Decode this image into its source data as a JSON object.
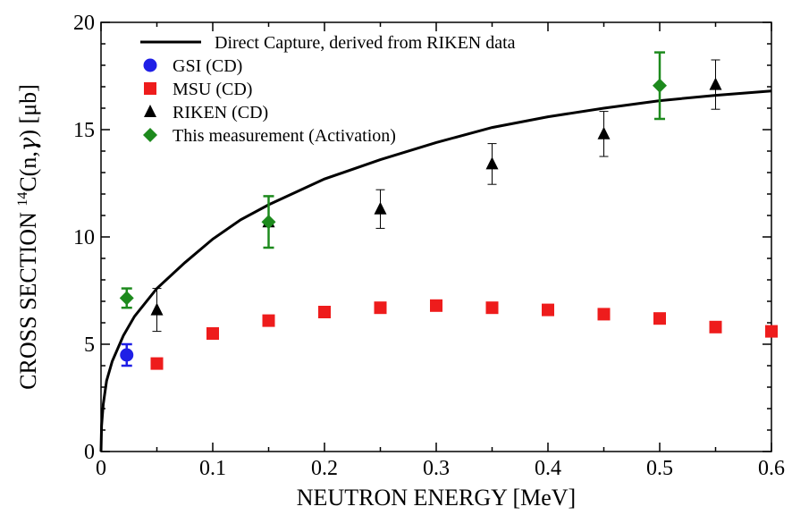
{
  "chart_data": {
    "type": "scatter",
    "title": "",
    "xlabel": "NEUTRON ENERGY [MeV]",
    "ylabel": {
      "prefix": "CROSS SECTION  ",
      "superscript": "14",
      "main": "C(n,",
      "gamma": "γ",
      "suffix": ") [μb]"
    },
    "xlim": [
      0,
      0.6
    ],
    "ylim": [
      0,
      20
    ],
    "xticks": [
      "0",
      "0.1",
      "0.2",
      "0.3",
      "0.4",
      "0.5",
      "0.6"
    ],
    "yticks": [
      "0",
      "5",
      "10",
      "15",
      "20"
    ],
    "legend_position": "top-left",
    "series": [
      {
        "name": "Direct Capture, derived from RIKEN data",
        "kind": "curve",
        "color": "#000000",
        "x": [
          0.0,
          0.0005,
          0.002,
          0.005,
          0.01,
          0.02,
          0.03,
          0.05,
          0.075,
          0.1,
          0.125,
          0.15,
          0.2,
          0.25,
          0.3,
          0.35,
          0.4,
          0.45,
          0.5,
          0.55,
          0.6
        ],
        "y": [
          0.0,
          1.2,
          2.2,
          3.3,
          4.2,
          5.4,
          6.3,
          7.6,
          8.8,
          9.9,
          10.8,
          11.5,
          12.7,
          13.6,
          14.4,
          15.1,
          15.6,
          16.0,
          16.35,
          16.6,
          16.8
        ]
      },
      {
        "name": "GSI (CD)",
        "kind": "points",
        "marker": "circle",
        "color": "#1f1fe6",
        "x": [
          0.023
        ],
        "y": [
          4.5
        ],
        "err": [
          0.5
        ]
      },
      {
        "name": "MSU (CD)",
        "kind": "points",
        "marker": "square",
        "color": "#ee1c1c",
        "x": [
          0.05,
          0.1,
          0.15,
          0.2,
          0.25,
          0.3,
          0.35,
          0.4,
          0.45,
          0.5,
          0.55,
          0.6
        ],
        "y": [
          4.1,
          5.5,
          6.1,
          6.5,
          6.7,
          6.8,
          6.7,
          6.6,
          6.4,
          6.2,
          5.8,
          5.6
        ]
      },
      {
        "name": "RIKEN (CD)",
        "kind": "points",
        "marker": "triangle",
        "color": "#000000",
        "x": [
          0.05,
          0.15,
          0.25,
          0.35,
          0.45,
          0.55
        ],
        "y": [
          6.6,
          10.7,
          11.3,
          13.4,
          14.8,
          17.1
        ],
        "err": [
          1.0,
          1.2,
          0.9,
          0.95,
          1.05,
          1.15
        ]
      },
      {
        "name": "This measurement (Activation)",
        "kind": "points",
        "marker": "diamond",
        "color": "#1d8a1d",
        "x": [
          0.023,
          0.15,
          0.5
        ],
        "y": [
          7.15,
          10.7,
          17.05
        ],
        "err": [
          0.45,
          1.2,
          1.55
        ]
      }
    ]
  }
}
